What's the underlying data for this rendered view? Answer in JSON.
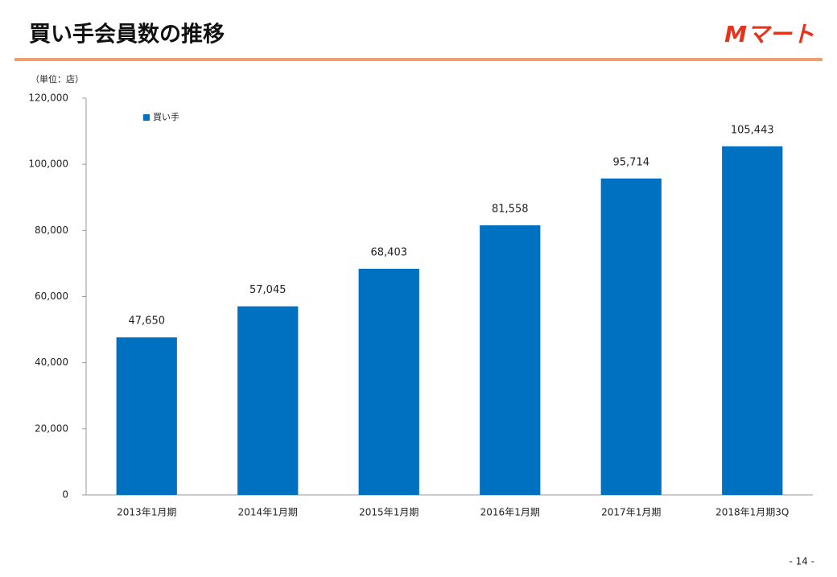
{
  "chart_data": {
    "type": "bar",
    "title": "買い手会員数の推移",
    "unit_label": "（単位：店）",
    "categories": [
      "2013年1月期",
      "2014年1月期",
      "2015年1月期",
      "2016年1月期",
      "2017年1月期",
      "2018年1月期3Q"
    ],
    "series": [
      {
        "name": "買い手",
        "color": "#0070c0",
        "values": [
          47650,
          57045,
          68403,
          81558,
          95714,
          105443
        ],
        "value_labels": [
          "47,650",
          "57,045",
          "68,403",
          "81,558",
          "95,714",
          "105,443"
        ]
      }
    ],
    "ylim": [
      0,
      120000
    ],
    "yticks": [
      0,
      {
        "value": 20000,
        "label": "20,000"
      },
      {
        "value": 40000,
        "label": "40,000"
      },
      {
        "value": 60000,
        "label": "60,000"
      },
      {
        "value": 80000,
        "label": "80,000"
      },
      {
        "value": 100000,
        "label": "100,000"
      },
      {
        "value": 120000,
        "label": "120,000"
      }
    ],
    "grid": false,
    "legend": "top-left"
  },
  "logo": "Mマート",
  "page_number": "- 14 -"
}
